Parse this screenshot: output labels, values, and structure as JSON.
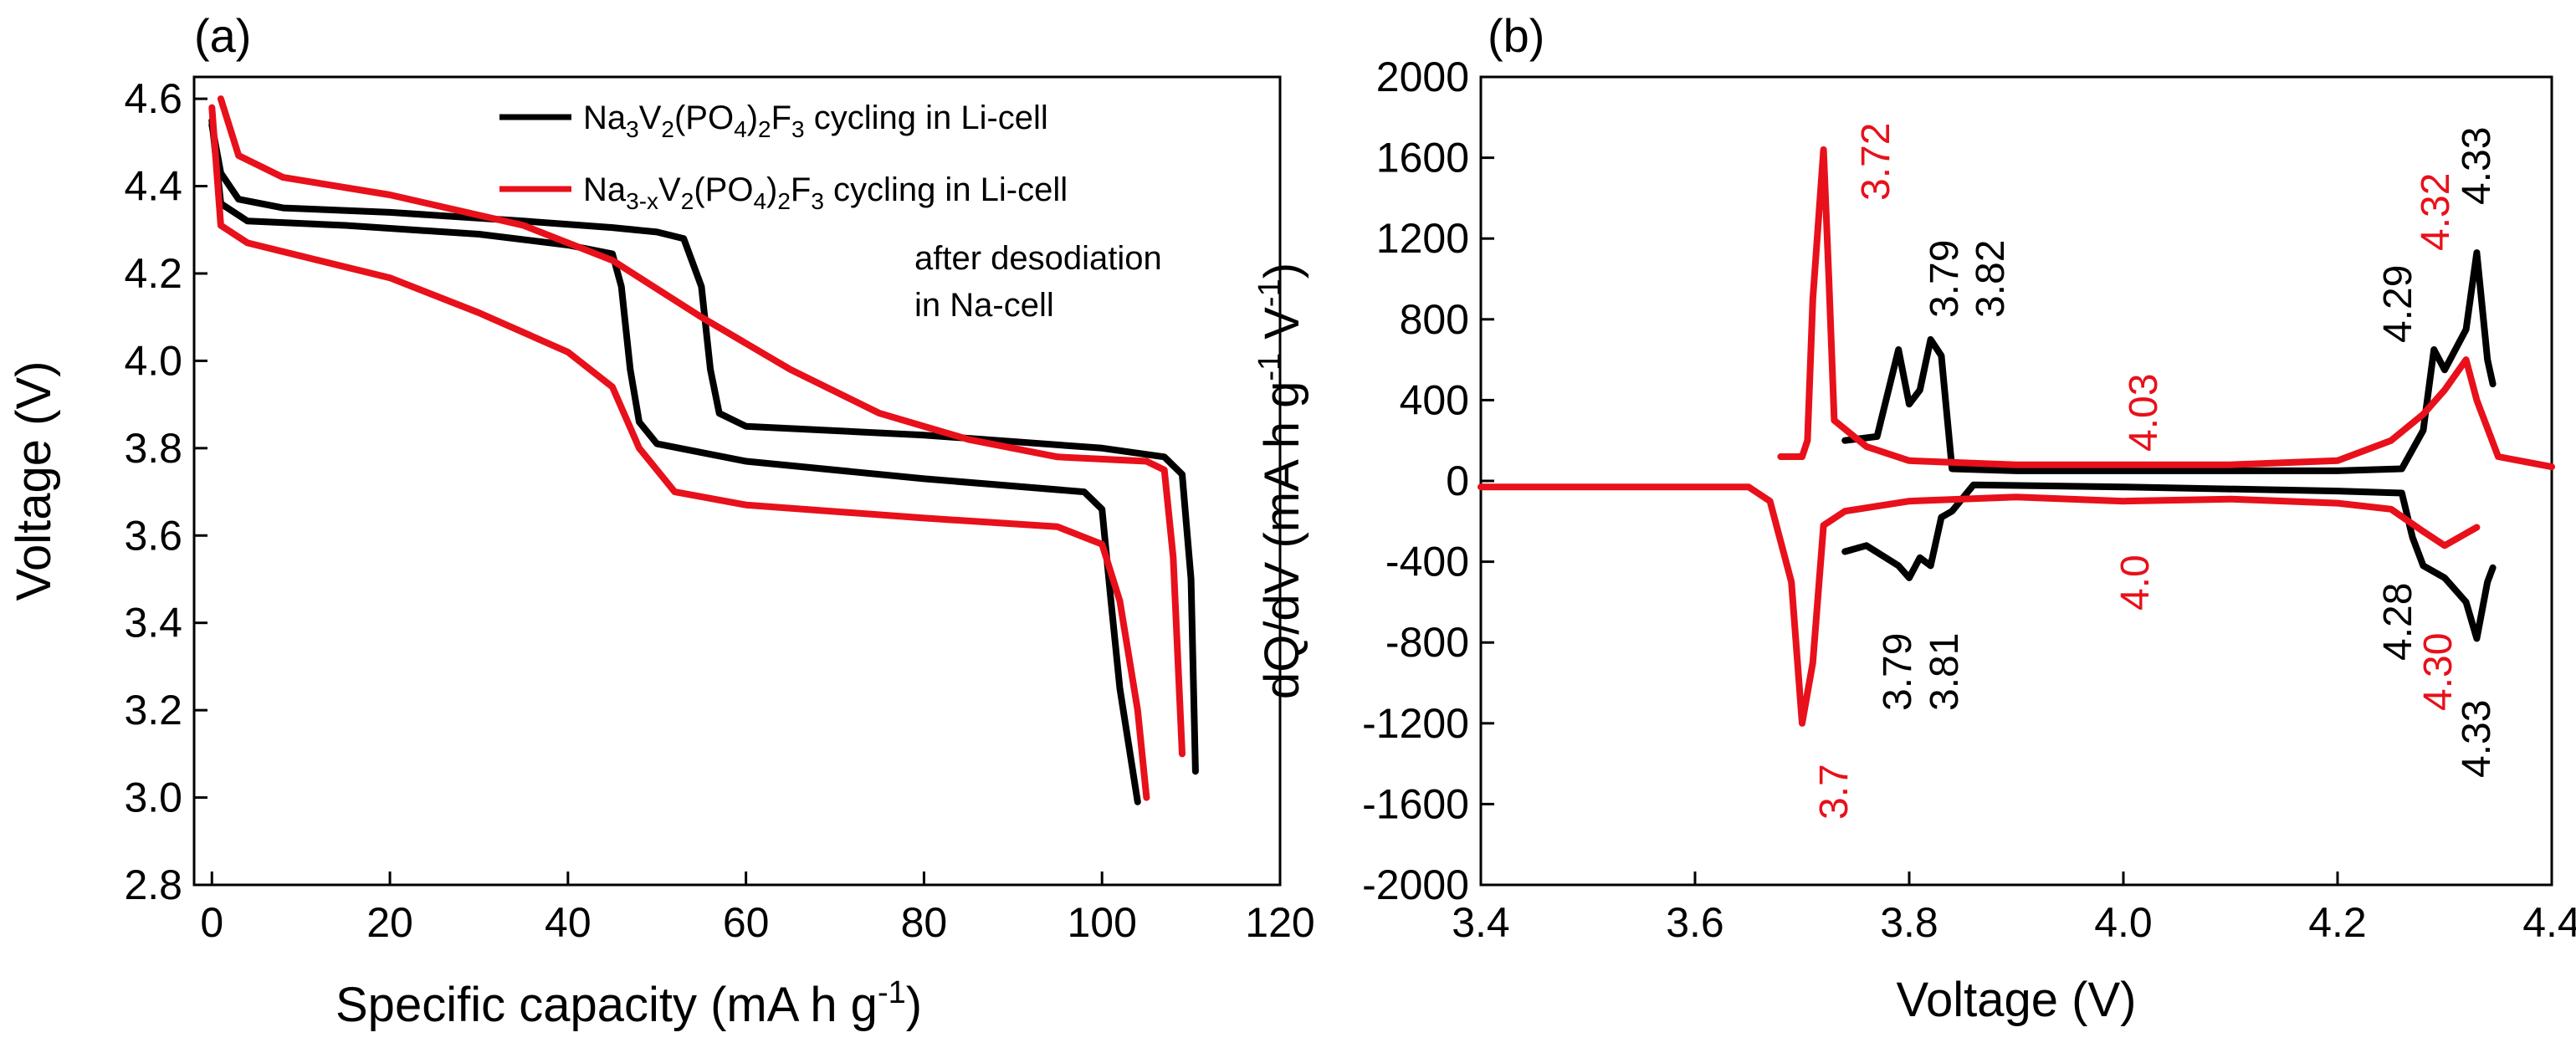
{
  "chart_data": [
    {
      "type": "line",
      "panel_label": "(a)",
      "xlabel": "Specific capacity (mA h g⁻¹)",
      "ylabel": "Voltage (V)",
      "xlim": [
        -2,
        120
      ],
      "ylim": [
        2.8,
        4.65
      ],
      "xticks": [
        0,
        20,
        40,
        60,
        80,
        100,
        120
      ],
      "yticks": [
        2.8,
        3.0,
        3.2,
        3.4,
        3.6,
        3.8,
        4.0,
        4.2,
        4.4,
        4.6
      ],
      "legend": {
        "placement": "top-right",
        "entries": [
          {
            "label": "Na3V2(PO4)2F3   cycling in Li-cell",
            "color": "#000000"
          },
          {
            "label": "Na3-xV2(PO4)2F3 cycling in Li-cell",
            "color": "#e8101a"
          }
        ],
        "note": [
          "after desodiation",
          "in Na-cell"
        ]
      },
      "series": [
        {
          "name": "Na3V2(PO4)2F3 charge",
          "color": "#000000",
          "points": [
            [
              0,
              4.54
            ],
            [
              1,
              4.43
            ],
            [
              3,
              4.37
            ],
            [
              8,
              4.35
            ],
            [
              20,
              4.34
            ],
            [
              35,
              4.32
            ],
            [
              45,
              4.305
            ],
            [
              50,
              4.295
            ],
            [
              53,
              4.28
            ],
            [
              55,
              4.17
            ],
            [
              56,
              3.98
            ],
            [
              57,
              3.88
            ],
            [
              60,
              3.85
            ],
            [
              80,
              3.83
            ],
            [
              100,
              3.8
            ],
            [
              107,
              3.78
            ],
            [
              109,
              3.74
            ],
            [
              110,
              3.5
            ],
            [
              110.5,
              3.06
            ]
          ]
        },
        {
          "name": "Na3V2(PO4)2F3 discharge",
          "color": "#000000",
          "points": [
            [
              0,
              4.55
            ],
            [
              1,
              4.36
            ],
            [
              4,
              4.32
            ],
            [
              15,
              4.31
            ],
            [
              30,
              4.29
            ],
            [
              40,
              4.265
            ],
            [
              45,
              4.245
            ],
            [
              46,
              4.17
            ],
            [
              47,
              3.98
            ],
            [
              48,
              3.86
            ],
            [
              50,
              3.81
            ],
            [
              60,
              3.77
            ],
            [
              80,
              3.73
            ],
            [
              98,
              3.7
            ],
            [
              100,
              3.66
            ],
            [
              101,
              3.45
            ],
            [
              102,
              3.25
            ],
            [
              104,
              2.99
            ]
          ]
        },
        {
          "name": "Na3-xV2(PO4)2F3 charge",
          "color": "#e8101a",
          "points": [
            [
              1,
              4.6
            ],
            [
              3,
              4.47
            ],
            [
              8,
              4.42
            ],
            [
              20,
              4.38
            ],
            [
              35,
              4.31
            ],
            [
              45,
              4.23
            ],
            [
              55,
              4.1
            ],
            [
              65,
              3.98
            ],
            [
              75,
              3.88
            ],
            [
              85,
              3.82
            ],
            [
              95,
              3.78
            ],
            [
              105,
              3.77
            ],
            [
              107,
              3.75
            ],
            [
              108,
              3.55
            ],
            [
              109,
              3.1
            ]
          ]
        },
        {
          "name": "Na3-xV2(PO4)2F3 discharge",
          "color": "#e8101a",
          "points": [
            [
              0,
              4.58
            ],
            [
              1,
              4.31
            ],
            [
              4,
              4.27
            ],
            [
              10,
              4.24
            ],
            [
              20,
              4.19
            ],
            [
              30,
              4.11
            ],
            [
              40,
              4.02
            ],
            [
              45,
              3.94
            ],
            [
              48,
              3.8
            ],
            [
              52,
              3.7
            ],
            [
              60,
              3.67
            ],
            [
              80,
              3.64
            ],
            [
              95,
              3.62
            ],
            [
              100,
              3.58
            ],
            [
              102,
              3.45
            ],
            [
              104,
              3.2
            ],
            [
              105,
              3.0
            ]
          ]
        }
      ]
    },
    {
      "type": "line",
      "panel_label": "(b)",
      "xlabel": "Voltage (V)",
      "ylabel": "dQ/dV (mA h g⁻¹ V⁻¹)",
      "xlim": [
        3.4,
        4.4
      ],
      "ylim": [
        -2000,
        2000
      ],
      "xticks": [
        3.4,
        3.6,
        3.8,
        4.0,
        4.2,
        4.4
      ],
      "yticks": [
        -2000,
        -1600,
        -1200,
        -800,
        -400,
        0,
        400,
        800,
        1200,
        1600,
        2000
      ],
      "series": [
        {
          "name": "Na3V2(PO4)2F3 charge",
          "color": "#000000",
          "points": [
            [
              3.74,
              200
            ],
            [
              3.77,
              220
            ],
            [
              3.79,
              650
            ],
            [
              3.8,
              380
            ],
            [
              3.81,
              450
            ],
            [
              3.82,
              700
            ],
            [
              3.83,
              620
            ],
            [
              3.84,
              60
            ],
            [
              3.9,
              50
            ],
            [
              4.1,
              50
            ],
            [
              4.2,
              50
            ],
            [
              4.26,
              60
            ],
            [
              4.28,
              250
            ],
            [
              4.29,
              650
            ],
            [
              4.3,
              550
            ],
            [
              4.32,
              750
            ],
            [
              4.33,
              1130
            ],
            [
              4.34,
              600
            ],
            [
              4.345,
              480
            ]
          ]
        },
        {
          "name": "Na3V2(PO4)2F3 discharge",
          "color": "#000000",
          "points": [
            [
              3.74,
              -350
            ],
            [
              3.76,
              -320
            ],
            [
              3.79,
              -420
            ],
            [
              3.8,
              -480
            ],
            [
              3.81,
              -380
            ],
            [
              3.82,
              -420
            ],
            [
              3.83,
              -180
            ],
            [
              3.84,
              -150
            ],
            [
              3.86,
              -20
            ],
            [
              4.0,
              -30
            ],
            [
              4.2,
              -50
            ],
            [
              4.26,
              -60
            ],
            [
              4.27,
              -280
            ],
            [
              4.28,
              -420
            ],
            [
              4.3,
              -480
            ],
            [
              4.32,
              -600
            ],
            [
              4.33,
              -780
            ],
            [
              4.34,
              -500
            ],
            [
              4.345,
              -430
            ]
          ]
        },
        {
          "name": "Na3-xV2(PO4)2F3 charge",
          "color": "#e8101a",
          "points": [
            [
              3.68,
              120
            ],
            [
              3.7,
              120
            ],
            [
              3.705,
              200
            ],
            [
              3.71,
              900
            ],
            [
              3.72,
              1640
            ],
            [
              3.725,
              1000
            ],
            [
              3.73,
              300
            ],
            [
              3.76,
              170
            ],
            [
              3.8,
              100
            ],
            [
              3.9,
              80
            ],
            [
              4.0,
              80
            ],
            [
              4.1,
              80
            ],
            [
              4.2,
              100
            ],
            [
              4.25,
              200
            ],
            [
              4.28,
              330
            ],
            [
              4.3,
              450
            ],
            [
              4.32,
              600
            ],
            [
              4.33,
              400
            ],
            [
              4.35,
              120
            ],
            [
              4.4,
              70
            ]
          ]
        },
        {
          "name": "Na3-xV2(PO4)2F3 discharge",
          "color": "#e8101a",
          "points": [
            [
              3.4,
              -30
            ],
            [
              3.6,
              -30
            ],
            [
              3.65,
              -30
            ],
            [
              3.67,
              -100
            ],
            [
              3.69,
              -500
            ],
            [
              3.7,
              -1200
            ],
            [
              3.71,
              -900
            ],
            [
              3.72,
              -220
            ],
            [
              3.74,
              -150
            ],
            [
              3.8,
              -100
            ],
            [
              3.9,
              -80
            ],
            [
              4.0,
              -100
            ],
            [
              4.1,
              -90
            ],
            [
              4.2,
              -110
            ],
            [
              4.25,
              -140
            ],
            [
              4.28,
              -250
            ],
            [
              4.3,
              -320
            ],
            [
              4.33,
              -230
            ]
          ]
        }
      ],
      "annotations": [
        {
          "text": "3.72",
          "color": "#e8101a"
        },
        {
          "text": "3.79",
          "color": "#000000"
        },
        {
          "text": "3.82",
          "color": "#000000"
        },
        {
          "text": "4.03",
          "color": "#e8101a"
        },
        {
          "text": "4.29",
          "color": "#000000"
        },
        {
          "text": "4.32",
          "color": "#e8101a"
        },
        {
          "text": "4.33",
          "color": "#000000"
        },
        {
          "text": "3.7",
          "color": "#e8101a"
        },
        {
          "text": "3.79",
          "color": "#000000"
        },
        {
          "text": "3.81",
          "color": "#000000"
        },
        {
          "text": "4.0",
          "color": "#e8101a"
        },
        {
          "text": "4.28",
          "color": "#000000"
        },
        {
          "text": "4.30",
          "color": "#e8101a"
        },
        {
          "text": "4.33",
          "color": "#000000"
        }
      ]
    }
  ]
}
